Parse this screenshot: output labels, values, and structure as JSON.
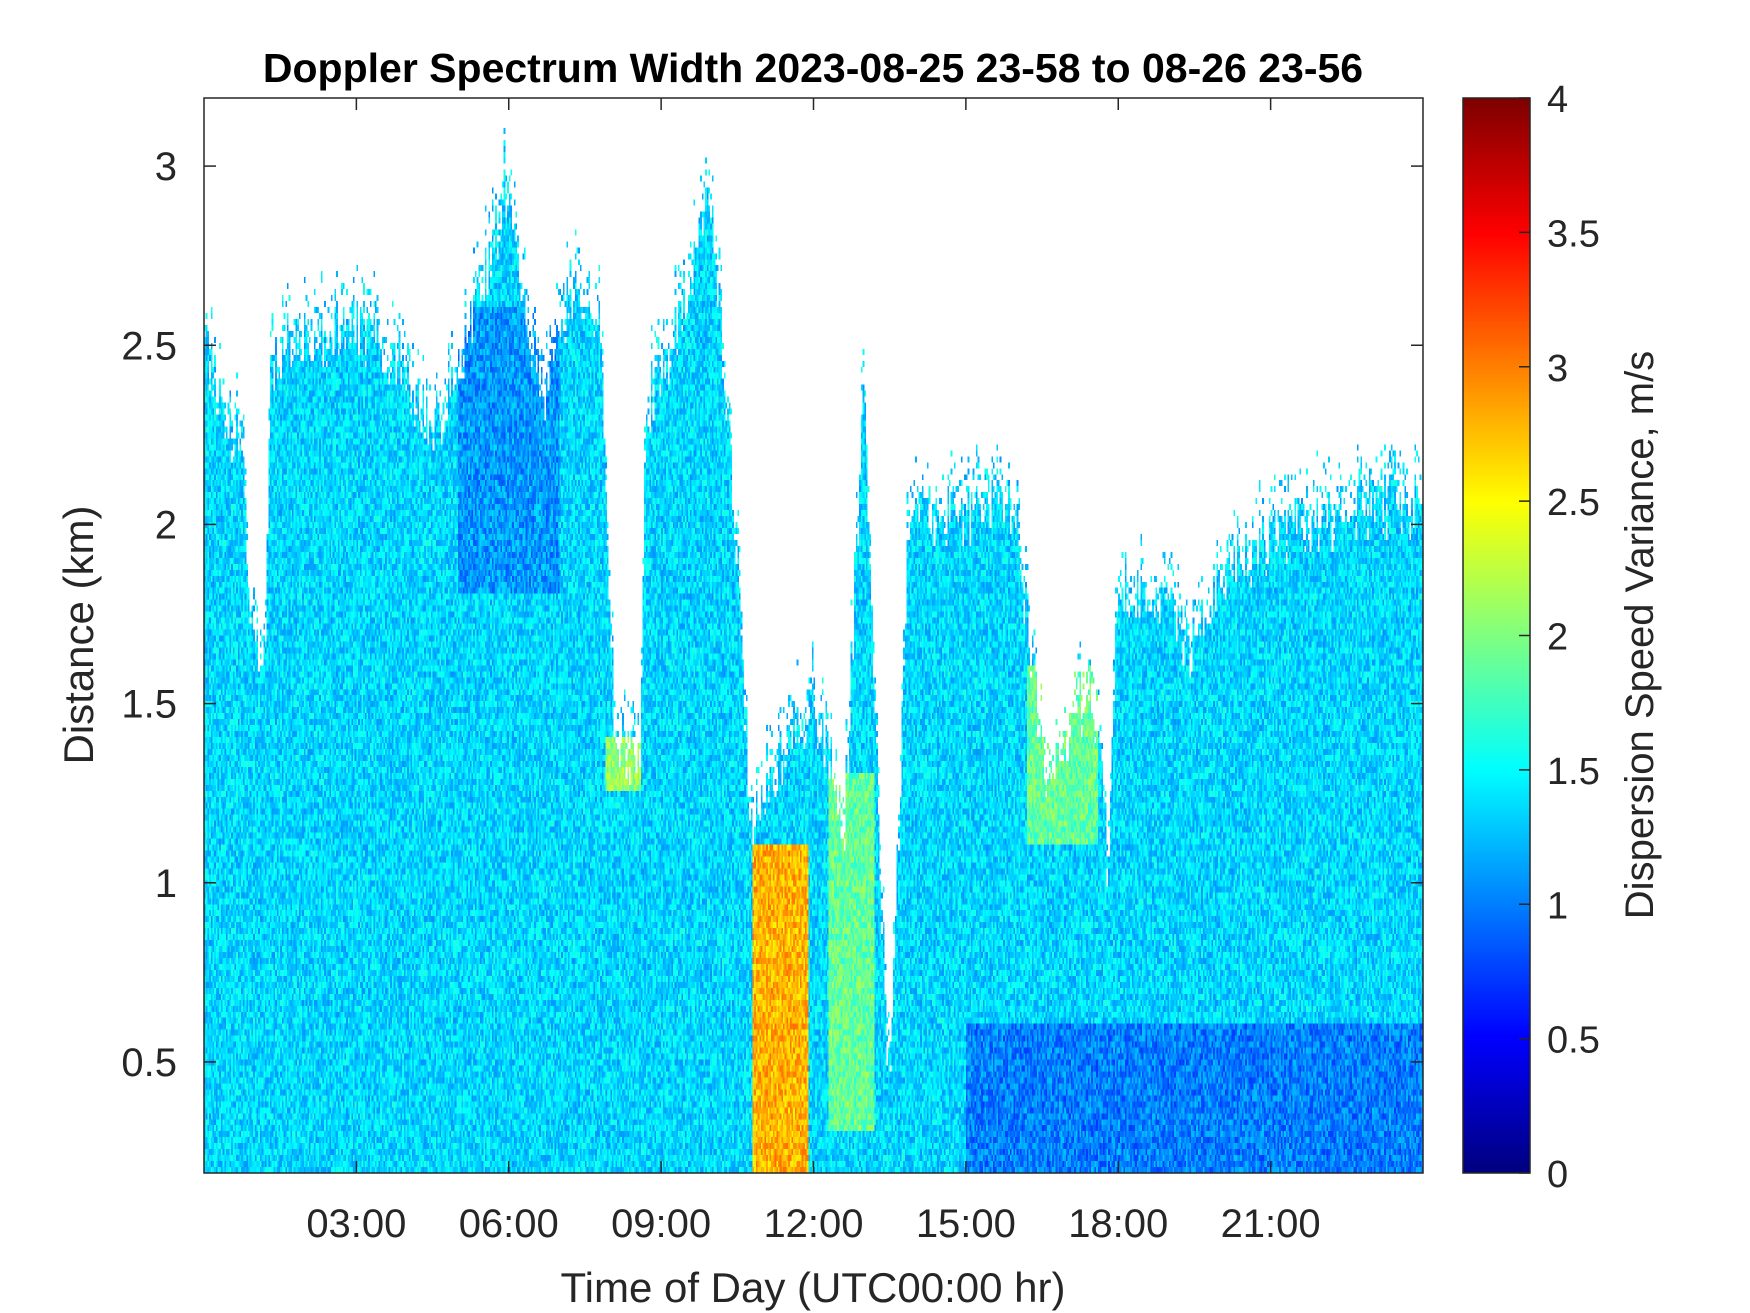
{
  "chart_data": {
    "type": "heatmap",
    "title": "Doppler Spectrum Width 2023-08-25 23-58 to 08-26 23-56",
    "xlabel": "Time of Day (UTC00:00 hr)",
    "ylabel": "Distance (km)",
    "colorbar_label": "Dispersion Speed Variance, m/s",
    "colormap": "jet",
    "xlim": [
      0,
      24
    ],
    "ylim": [
      0.19,
      3.19
    ],
    "clim": [
      0,
      4
    ],
    "x_ticks": [
      {
        "value": 3,
        "label": "03:00"
      },
      {
        "value": 6,
        "label": "06:00"
      },
      {
        "value": 9,
        "label": "09:00"
      },
      {
        "value": 12,
        "label": "12:00"
      },
      {
        "value": 15,
        "label": "15:00"
      },
      {
        "value": 18,
        "label": "18:00"
      },
      {
        "value": 21,
        "label": "21:00"
      }
    ],
    "y_ticks": [
      {
        "value": 0.5,
        "label": "0.5"
      },
      {
        "value": 1,
        "label": "1"
      },
      {
        "value": 1.5,
        "label": "1.5"
      },
      {
        "value": 2,
        "label": "2"
      },
      {
        "value": 2.5,
        "label": "2.5"
      },
      {
        "value": 3,
        "label": "3"
      }
    ],
    "colorbar_ticks": [
      {
        "value": 0,
        "label": "0"
      },
      {
        "value": 0.5,
        "label": "0.5"
      },
      {
        "value": 1,
        "label": "1"
      },
      {
        "value": 1.5,
        "label": "1.5"
      },
      {
        "value": 2,
        "label": "2"
      },
      {
        "value": 2.5,
        "label": "2.5"
      },
      {
        "value": 3,
        "label": "3"
      },
      {
        "value": 3.5,
        "label": "3.5"
      },
      {
        "value": 4,
        "label": "4"
      }
    ],
    "signal_top_km": [
      [
        0.0,
        2.5
      ],
      [
        0.5,
        2.25
      ],
      [
        0.8,
        2.2
      ],
      [
        0.9,
        1.7
      ],
      [
        1.2,
        1.6
      ],
      [
        1.3,
        2.45
      ],
      [
        2.0,
        2.5
      ],
      [
        3.0,
        2.55
      ],
      [
        4.0,
        2.4
      ],
      [
        4.6,
        2.27
      ],
      [
        5.3,
        2.55
      ],
      [
        6.0,
        2.95
      ],
      [
        6.3,
        2.6
      ],
      [
        6.7,
        2.35
      ],
      [
        7.2,
        2.65
      ],
      [
        7.8,
        2.55
      ],
      [
        8.1,
        1.4
      ],
      [
        8.6,
        1.3
      ],
      [
        8.7,
        2.3
      ],
      [
        9.2,
        2.5
      ],
      [
        10.0,
        2.9
      ],
      [
        10.5,
        1.9
      ],
      [
        10.8,
        1.1
      ],
      [
        11.2,
        1.3
      ],
      [
        11.6,
        1.4
      ],
      [
        12.0,
        1.5
      ],
      [
        12.4,
        1.3
      ],
      [
        12.6,
        1.1
      ],
      [
        13.0,
        2.4
      ],
      [
        13.2,
        1.5
      ],
      [
        13.5,
        0.4
      ],
      [
        13.9,
        2.1
      ],
      [
        14.5,
        2.0
      ],
      [
        15.5,
        2.05
      ],
      [
        16.0,
        2.0
      ],
      [
        16.3,
        1.6
      ],
      [
        16.6,
        1.25
      ],
      [
        17.2,
        1.45
      ],
      [
        17.5,
        1.55
      ],
      [
        17.8,
        1.05
      ],
      [
        18.0,
        1.85
      ],
      [
        19.0,
        1.75
      ],
      [
        19.5,
        1.65
      ],
      [
        20.0,
        1.85
      ],
      [
        20.5,
        1.9
      ],
      [
        21.0,
        1.95
      ],
      [
        22.0,
        2.0
      ],
      [
        23.0,
        2.05
      ],
      [
        24.0,
        2.05
      ]
    ],
    "value_regions": [
      {
        "x": [
          0.0,
          24.0
        ],
        "y": [
          0.19,
          3.19
        ],
        "mean": 1.35
      },
      {
        "x": [
          10.8,
          11.9
        ],
        "y": [
          0.19,
          1.1
        ],
        "mean": 2.8
      },
      {
        "x": [
          12.3,
          13.2
        ],
        "y": [
          0.3,
          1.3
        ],
        "mean": 1.9
      },
      {
        "x": [
          7.9,
          8.6
        ],
        "y": [
          1.25,
          1.4
        ],
        "mean": 2.1
      },
      {
        "x": [
          16.2,
          17.6
        ],
        "y": [
          1.1,
          1.6
        ],
        "mean": 1.9
      },
      {
        "x": [
          15.0,
          24.0
        ],
        "y": [
          0.19,
          0.6
        ],
        "mean": 1.0
      },
      {
        "x": [
          5.0,
          7.0
        ],
        "y": [
          1.8,
          2.6
        ],
        "mean": 1.1
      }
    ],
    "grid": false,
    "colorbar_position": "right"
  }
}
